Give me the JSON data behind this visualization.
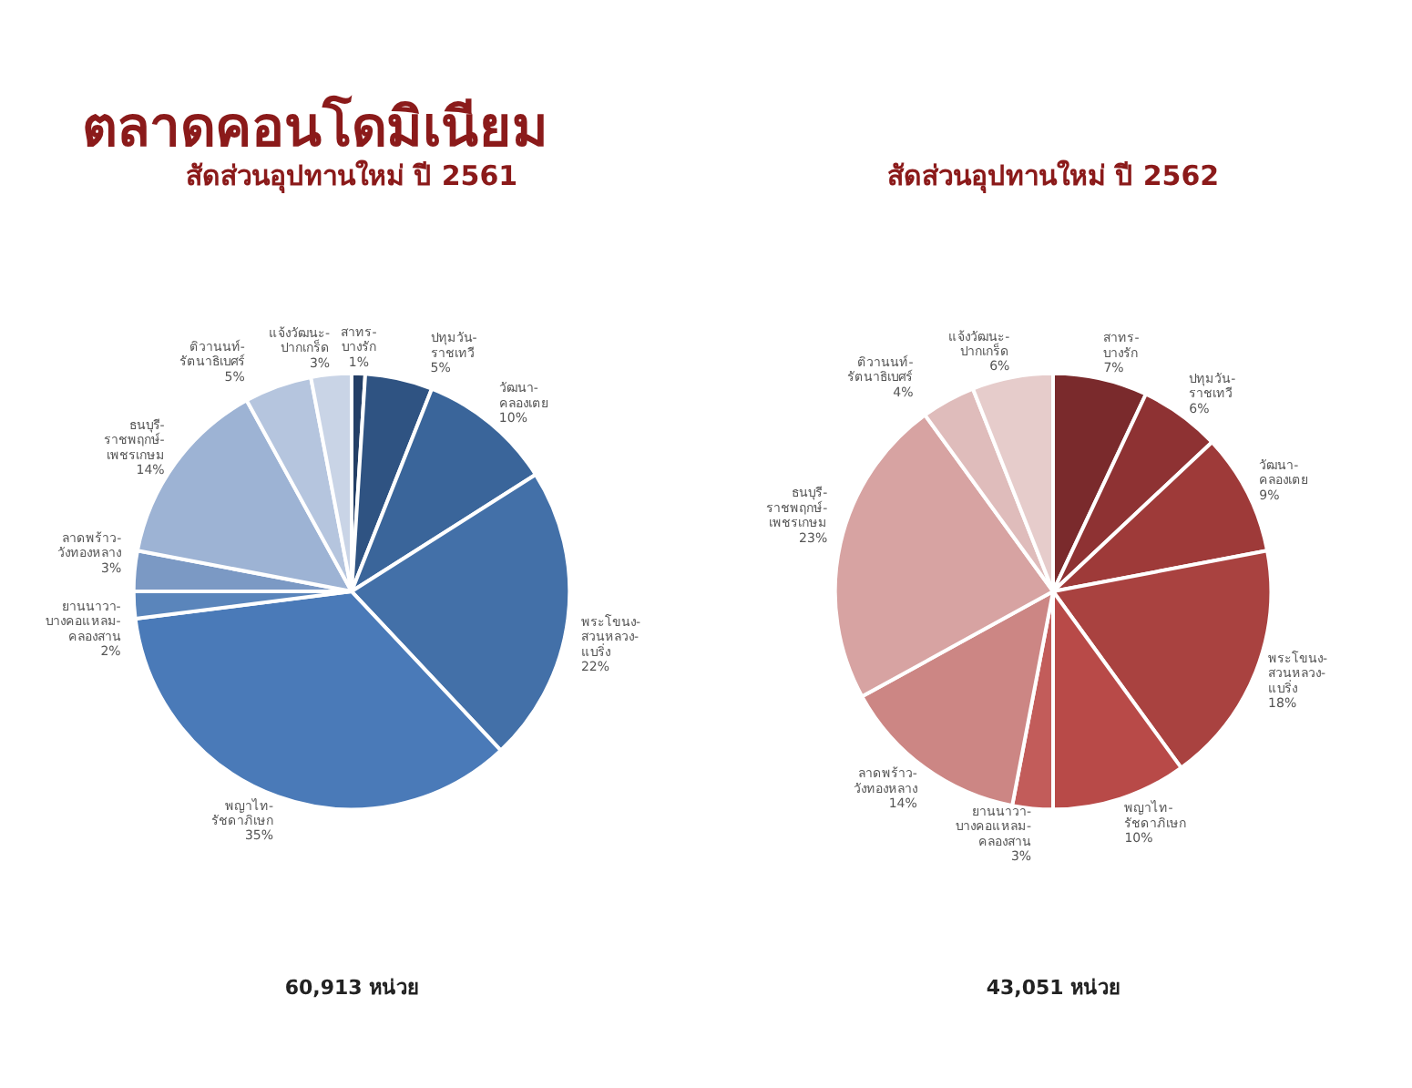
{
  "chart_data": [
    {
      "type": "pie",
      "title": "สัดส่วนอุปทานใหม่ ปี 2561",
      "annotations": [
        "ตลาดคอนโดมิเนียม",
        "60,913 หน่วย"
      ],
      "categories": [
        "สาทร-บางรัก",
        "ปทุมวัน-ราชเทวี",
        "วัฒนา-คลองเตย",
        "พระโขนง-สวนหลวง-แบริ่ง",
        "พญาไท-รัชดาภิเษก",
        "ยานนาวา-บางคอแหลม-คลองสาน",
        "ลาดพร้าว-วังทองหลาง",
        "ธนบุรี-ราชพฤกษ์-เพชรเกษม",
        "ติวานนท์-รัตนาธิเบศร์",
        "แจ้งวัฒนะ-ปากเกร็ด"
      ],
      "values": [
        1,
        5,
        10,
        22,
        35,
        2,
        3,
        14,
        5,
        3
      ],
      "value_labels": [
        "1%",
        "5%",
        "10%",
        "22%",
        "35%",
        "2%",
        "3%",
        "14%",
        "5%",
        "3%"
      ],
      "colors": [
        "#243f66",
        "#2f5382",
        "#3a659a",
        "#4370a8",
        "#4a7ab8",
        "#5a85bb",
        "#7b99c4",
        "#9db3d4",
        "#b5c5de",
        "#c9d4e6"
      ]
    },
    {
      "type": "pie",
      "title": "สัดส่วนอุปทานใหม่ ปี 2562",
      "annotations": [
        "43,051 หน่วย"
      ],
      "categories": [
        "สาทร-บางรัก",
        "ปทุมวัน-ราชเทวี",
        "วัฒนา-คลองเตย",
        "พระโขนง-สวนหลวง-แบริ่ง",
        "พญาไท-รัชดาภิเษก",
        "ยานนาวา-บางคอแหลม-คลองสาน",
        "ลาดพร้าว-วังทองหลาง",
        "ธนบุรี-ราชพฤกษ์-เพชรเกษม",
        "ติวานนท์-รัตนาธิเบศร์",
        "แจ้งวัฒนะ-ปากเกร็ด"
      ],
      "values": [
        7,
        6,
        9,
        18,
        10,
        3,
        14,
        23,
        4,
        6
      ],
      "value_labels": [
        "7%",
        "6%",
        "9%",
        "18%",
        "10%",
        "3%",
        "14%",
        "23%",
        "4%",
        "6%"
      ],
      "colors": [
        "#7a2a2c",
        "#8e3233",
        "#9e3a39",
        "#a94240",
        "#b84a48",
        "#c25c5a",
        "#cc8684",
        "#d7a3a2",
        "#dfbcbb",
        "#e6cccb"
      ]
    }
  ]
}
